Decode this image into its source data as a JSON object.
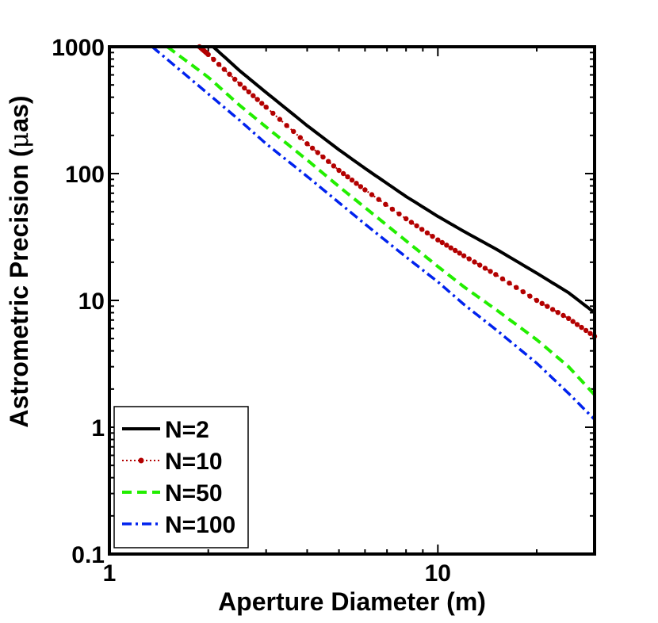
{
  "chart_data": {
    "type": "line",
    "title": "",
    "xlabel": "Aperture Diameter (m)",
    "ylabel_prefix": "Astrometric Precision (",
    "ylabel_mu": "μ",
    "ylabel_suffix": "as)",
    "x_scale": "log",
    "y_scale": "log",
    "xlim": [
      1,
      30
    ],
    "ylim": [
      0.1,
      1000
    ],
    "xticks": [
      1,
      10
    ],
    "xtick_labels": [
      "1",
      "10"
    ],
    "yticks": [
      0.1,
      1,
      10,
      100,
      1000
    ],
    "ytick_labels": [
      "0.1",
      "1",
      "10",
      "100",
      "1000"
    ],
    "legend_position": "bottom-left",
    "series": [
      {
        "name": "N=2",
        "label": "N=2",
        "color": "#000000",
        "style": "solid",
        "x": [
          2.07,
          2.5,
          3,
          4,
          5,
          6,
          8,
          10,
          12,
          15,
          20,
          25,
          30
        ],
        "y": [
          1000,
          643,
          436,
          239,
          154,
          110,
          66,
          46,
          35,
          25.5,
          16.4,
          11.5,
          8.0
        ]
      },
      {
        "name": "N=10",
        "label": "N=10",
        "color": "#b30000",
        "style": "dotted-markers",
        "x": [
          1.88,
          2,
          2.5,
          3,
          4,
          5,
          6,
          8,
          10,
          12,
          15,
          20,
          25,
          30
        ],
        "y": [
          1000,
          869,
          507,
          334,
          172,
          106,
          74.5,
          44,
          30,
          22.5,
          16,
          10,
          7.2,
          5.2
        ]
      },
      {
        "name": "N=50",
        "label": "N=50",
        "color": "#22ee00",
        "style": "dashed",
        "x": [
          1.5,
          2,
          2.5,
          3,
          4,
          5,
          6,
          8,
          10,
          12,
          15,
          20,
          25,
          30
        ],
        "y": [
          1000,
          575,
          343,
          233,
          128,
          79,
          54,
          29.5,
          18.5,
          12.8,
          8.5,
          4.9,
          3.0,
          1.8
        ]
      },
      {
        "name": "N=100",
        "label": "N=100",
        "color": "#0022ee",
        "style": "dash-dot",
        "x": [
          1.35,
          2,
          2.5,
          3,
          4,
          5,
          6,
          8,
          10,
          12,
          15,
          20,
          25,
          30
        ],
        "y": [
          1000,
          425,
          261,
          172,
          95,
          59,
          40,
          22,
          14,
          9.3,
          5.9,
          3.2,
          1.85,
          1.15
        ]
      }
    ]
  }
}
